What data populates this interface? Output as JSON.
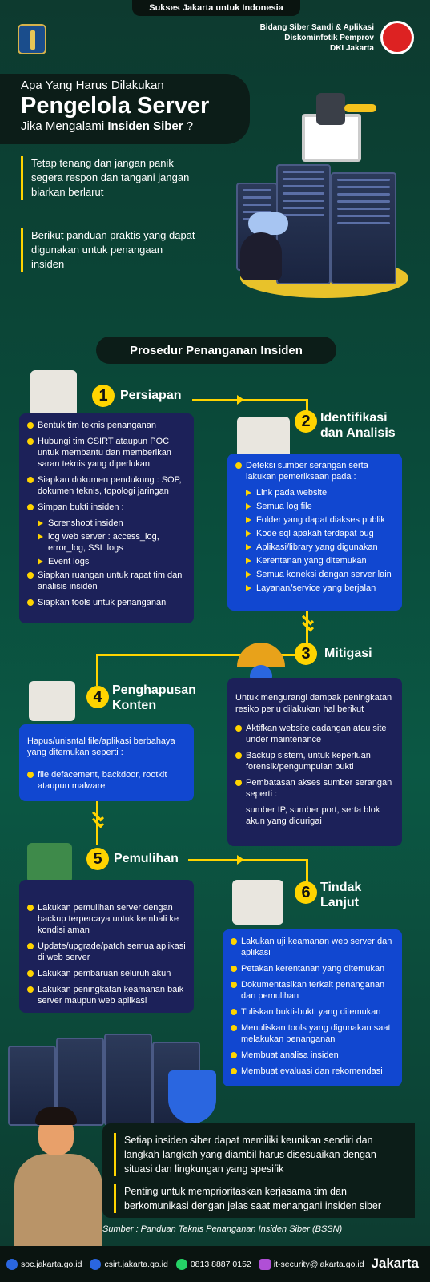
{
  "header": {
    "pill": "Sukses Jakarta untuk Indonesia",
    "org_lines": [
      "Bidang Siber Sandi & Aplikasi",
      "Diskominfotik Pemprov",
      "DKI Jakarta"
    ]
  },
  "title": {
    "line1": "Apa Yang Harus Dilakukan",
    "line2": "Pengelola Server",
    "line3_pre": "Jika Mengalami ",
    "line3_bold": "Insiden Siber",
    "line3_post": " ?"
  },
  "intro": {
    "p1": "Tetap tenang dan jangan panik segera respon dan tangani jangan biarkan berlarut",
    "p2": "Berikut panduan praktis yang dapat digunakan untuk penangaan insiden"
  },
  "procedure_title": "Prosedur Penanganan Insiden",
  "steps": {
    "s1": {
      "num": "1",
      "title": "Persiapan",
      "items": [
        "Bentuk tim teknis penanganan",
        "Hubungi tim CSIRT ataupun POC untuk membantu dan memberikan saran teknis yang diperlukan",
        "Siapkan dokumen pendukung : SOP, dokumen teknis, topologi jaringan",
        "Simpan bukti insiden :"
      ],
      "sub": [
        "Screnshoot insiden",
        "log web server : access_log, error_log, SSL logs",
        "Event logs"
      ],
      "items2": [
        "Siapkan ruangan untuk rapat tim dan analisis insiden",
        "Siapkan tools untuk penanganan"
      ]
    },
    "s2": {
      "num": "2",
      "title1": "Identifikasi",
      "title2": "dan Analisis",
      "lead": "Deteksi sumber serangan serta lakukan pemeriksaan pada :",
      "sub": [
        "Link pada website",
        "Semua log file",
        "Folder yang dapat diakses publik",
        "Kode sql apakah terdapat bug",
        "Aplikasi/library yang digunakan",
        "Kerentanan yang ditemukan",
        "Semua koneksi dengan server lain",
        "Layanan/service yang berjalan"
      ]
    },
    "s3": {
      "num": "3",
      "title": "Mitigasi",
      "lead": "Untuk mengurangi dampak peningkatan resiko perlu dilakukan hal berikut",
      "items": [
        "Aktifkan website cadangan atau site under maintenance",
        "Backup sistem, untuk keperluan forensik/pengumpulan bukti",
        "Pembatasan akses sumber serangan seperti :"
      ],
      "tail": "sumber IP, sumber port, serta blok akun yang dicurigai"
    },
    "s4": {
      "num": "4",
      "title1": "Penghapusan",
      "title2": "Konten",
      "lead": "Hapus/unisntal file/aplikasi berbahaya yang ditemukan seperti :",
      "items": [
        "file defacement, backdoor, rootkit ataupun malware"
      ]
    },
    "s5": {
      "num": "5",
      "title": "Pemulihan",
      "items": [
        "Lakukan pemulihan server dengan backup terpercaya untuk kembali ke kondisi aman",
        "Update/upgrade/patch semua aplikasi di web server",
        "Lakukan pembaruan seluruh akun",
        "Lakukan peningkatan keamanan baik server maupun web aplikasi"
      ]
    },
    "s6": {
      "num": "6",
      "title1": "Tindak",
      "title2": "Lanjut",
      "items": [
        "Lakukan uji keamanan web server dan aplikasi",
        "Petakan kerentanan yang ditemukan",
        "Dokumentasikan terkait penanganan dan pemulihan",
        "Tuliskan bukti-bukti yang ditemukan",
        "Menuliskan tools yang digunakan saat melakukan penanganan",
        "Membuat analisa insiden",
        "Membuat evaluasi dan rekomendasi"
      ]
    }
  },
  "notes": {
    "n1": "Setiap insiden siber dapat memiliki keunikan sendiri dan langkah-langkah yang diambil harus disesuaikan dengan situasi dan lingkungan yang spesifik",
    "n2": "Penting untuk memprioritaskan kerjasama tim dan berkomunikasi dengan jelas saat menangani insiden siber"
  },
  "source": "Sumber :  Panduan Teknis Penanganan Insiden Siber (BSSN)",
  "footer": {
    "web1": "soc.jakarta.go.id",
    "web2": "csirt.jakarta.go.id",
    "phone": "0813 8887 0152",
    "email": "it-security@jakarta.go.id",
    "brand": "Jakarta"
  },
  "colors": {
    "accent": "#ffd400",
    "navy_box": "#1c2159",
    "blue_box": "#1147d0",
    "bg": "#0a4a3a"
  }
}
